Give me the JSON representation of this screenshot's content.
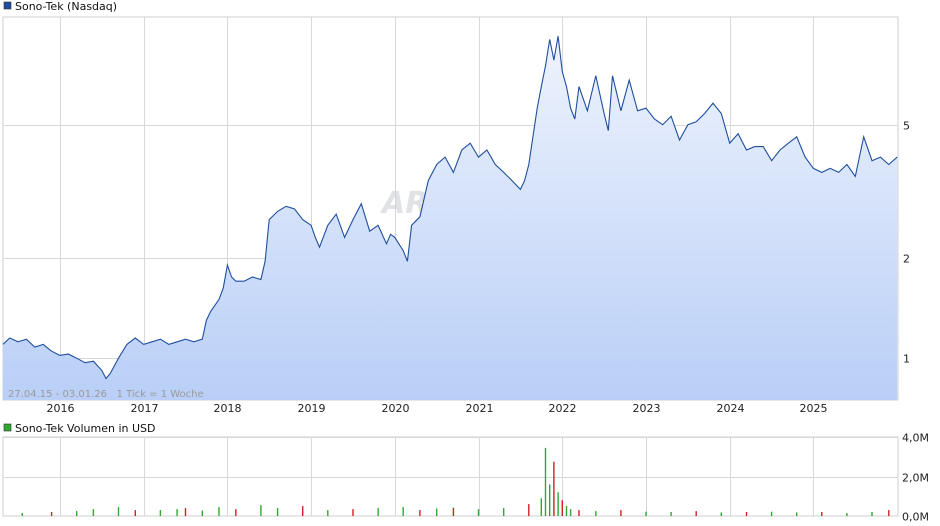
{
  "legend_price": "Sono-Tek (Nasdaq)",
  "legend_volume": "Sono-Tek Volumen in USD",
  "info": "27.04.15 - 03.01.26   1 Tick = 1 Woche",
  "watermark": "ARIVA.DE",
  "colors": {
    "line": "#1f4e9e",
    "fill_top": "#eef3fd",
    "fill_bottom": "#b9cff7",
    "grid": "#d8d8d8",
    "vol_up": "#2fa82f",
    "vol_down": "#cc2222",
    "legend_price_swatch": "#1f4e9e",
    "legend_volume_swatch": "#2fa82f"
  },
  "chart_data": [
    {
      "type": "area",
      "scale": "log",
      "ylim": [
        0.75,
        10.5
      ],
      "yticks": [
        1,
        2,
        5
      ],
      "ytick_labels": [
        "1",
        "2",
        "5"
      ],
      "xlim": [
        2015.32,
        2026.01
      ],
      "xticks": [
        2016,
        2017,
        2018,
        2019,
        2020,
        2021,
        2022,
        2023,
        2024,
        2025
      ],
      "xtick_labels": [
        "2016",
        "2017",
        "2018",
        "2019",
        "2020",
        "2021",
        "2022",
        "2023",
        "2024",
        "2025"
      ],
      "series": [
        {
          "name": "Sono-Tek (Nasdaq)",
          "x": [
            2015.32,
            2015.4,
            2015.5,
            2015.6,
            2015.7,
            2015.8,
            2015.9,
            2016.0,
            2016.1,
            2016.2,
            2016.3,
            2016.4,
            2016.5,
            2016.55,
            2016.6,
            2016.7,
            2016.8,
            2016.9,
            2017.0,
            2017.1,
            2017.2,
            2017.3,
            2017.4,
            2017.5,
            2017.6,
            2017.7,
            2017.75,
            2017.8,
            2017.9,
            2017.95,
            2018.0,
            2018.05,
            2018.1,
            2018.2,
            2018.3,
            2018.4,
            2018.45,
            2018.5,
            2018.6,
            2018.7,
            2018.8,
            2018.9,
            2019.0,
            2019.05,
            2019.1,
            2019.2,
            2019.3,
            2019.4,
            2019.5,
            2019.6,
            2019.7,
            2019.8,
            2019.9,
            2019.95,
            2020.0,
            2020.1,
            2020.15,
            2020.2,
            2020.3,
            2020.4,
            2020.5,
            2020.6,
            2020.7,
            2020.8,
            2020.9,
            2021.0,
            2021.1,
            2021.2,
            2021.3,
            2021.4,
            2021.5,
            2021.55,
            2021.6,
            2021.7,
            2021.75,
            2021.8,
            2021.85,
            2021.9,
            2021.95,
            2022.0,
            2022.05,
            2022.1,
            2022.15,
            2022.2,
            2022.3,
            2022.4,
            2022.5,
            2022.55,
            2022.6,
            2022.7,
            2022.8,
            2022.9,
            2023.0,
            2023.1,
            2023.2,
            2023.3,
            2023.4,
            2023.5,
            2023.6,
            2023.7,
            2023.8,
            2023.9,
            2024.0,
            2024.1,
            2024.2,
            2024.3,
            2024.4,
            2024.5,
            2024.6,
            2024.7,
            2024.8,
            2024.9,
            2025.0,
            2025.1,
            2025.2,
            2025.3,
            2025.4,
            2025.5,
            2025.6,
            2025.7,
            2025.8,
            2025.9,
            2026.0
          ],
          "y": [
            1.1,
            1.15,
            1.12,
            1.14,
            1.08,
            1.1,
            1.05,
            1.02,
            1.03,
            1.0,
            0.97,
            0.98,
            0.92,
            0.87,
            0.9,
            1.0,
            1.1,
            1.15,
            1.1,
            1.12,
            1.14,
            1.1,
            1.12,
            1.14,
            1.12,
            1.14,
            1.3,
            1.38,
            1.5,
            1.62,
            1.9,
            1.75,
            1.7,
            1.7,
            1.75,
            1.72,
            1.95,
            2.6,
            2.75,
            2.85,
            2.8,
            2.6,
            2.5,
            2.3,
            2.15,
            2.5,
            2.7,
            2.3,
            2.6,
            2.9,
            2.4,
            2.5,
            2.2,
            2.35,
            2.3,
            2.1,
            1.95,
            2.5,
            2.65,
            3.4,
            3.8,
            4.0,
            3.6,
            4.2,
            4.4,
            4.0,
            4.2,
            3.8,
            3.6,
            3.4,
            3.2,
            3.4,
            3.8,
            5.6,
            6.5,
            7.5,
            9.0,
            7.8,
            9.2,
            7.2,
            6.5,
            5.6,
            5.2,
            6.5,
            5.5,
            7.0,
            5.4,
            4.8,
            7.0,
            5.5,
            6.8,
            5.5,
            5.6,
            5.2,
            5.0,
            5.3,
            4.5,
            5.0,
            5.1,
            5.4,
            5.8,
            5.4,
            4.4,
            4.7,
            4.2,
            4.3,
            4.3,
            3.9,
            4.2,
            4.4,
            4.6,
            4.0,
            3.7,
            3.6,
            3.7,
            3.6,
            3.8,
            3.5,
            4.6,
            3.9,
            4.0,
            3.8,
            4.0
          ]
        }
      ]
    },
    {
      "type": "bar",
      "title": "Sono-Tek Volumen in USD",
      "ylim": [
        0,
        4.0
      ],
      "yticks": [
        0,
        2,
        4
      ],
      "ytick_labels": [
        "0,0M",
        "2,0M",
        "4,0M"
      ],
      "xlim": [
        2015.32,
        2026.01
      ],
      "series": [
        {
          "name": "Sono-Tek Volumen in USD",
          "x": [
            2015.55,
            2015.9,
            2016.2,
            2016.4,
            2016.7,
            2016.9,
            2017.2,
            2017.4,
            2017.5,
            2017.7,
            2017.9,
            2018.1,
            2018.4,
            2018.6,
            2018.9,
            2019.2,
            2019.5,
            2019.8,
            2020.1,
            2020.3,
            2020.5,
            2020.7,
            2021.0,
            2021.3,
            2021.6,
            2021.75,
            2021.8,
            2021.85,
            2021.9,
            2021.95,
            2022.0,
            2022.05,
            2022.1,
            2022.2,
            2022.4,
            2022.7,
            2023.0,
            2023.3,
            2023.6,
            2023.9,
            2024.2,
            2024.5,
            2024.8,
            2025.1,
            2025.4,
            2025.7,
            2025.9
          ],
          "values": [
            0.15,
            0.2,
            0.25,
            0.35,
            0.45,
            0.3,
            0.3,
            0.35,
            0.4,
            0.28,
            0.45,
            0.35,
            0.55,
            0.4,
            0.5,
            0.3,
            0.35,
            0.4,
            0.45,
            0.3,
            0.38,
            0.42,
            0.35,
            0.4,
            0.6,
            0.9,
            3.45,
            1.6,
            2.75,
            1.2,
            0.8,
            0.5,
            0.35,
            0.3,
            0.25,
            0.3,
            0.22,
            0.2,
            0.25,
            0.18,
            0.2,
            0.22,
            0.18,
            0.2,
            0.15,
            0.2,
            0.3
          ],
          "up": [
            true,
            false,
            true,
            true,
            true,
            false,
            true,
            true,
            false,
            true,
            true,
            false,
            true,
            true,
            false,
            true,
            false,
            true,
            true,
            false,
            true,
            false,
            true,
            true,
            false,
            true,
            true,
            true,
            false,
            true,
            false,
            true,
            true,
            false,
            true,
            false,
            true,
            true,
            false,
            true,
            false,
            true,
            true,
            false,
            true,
            true,
            false
          ]
        }
      ]
    }
  ]
}
